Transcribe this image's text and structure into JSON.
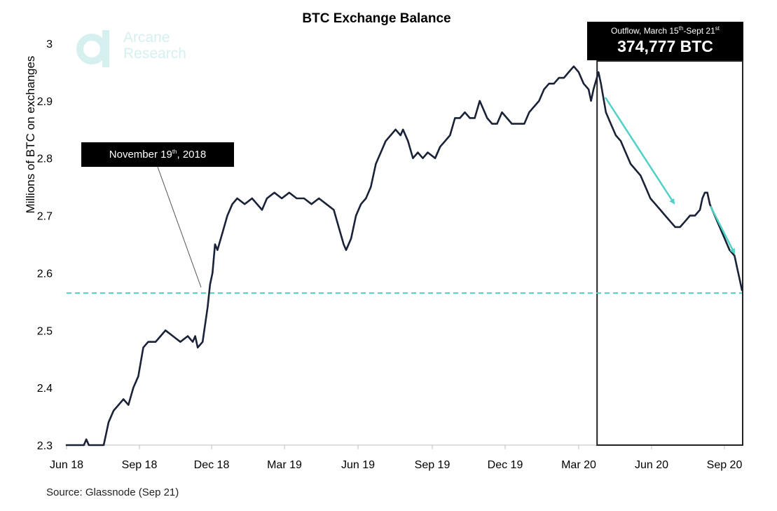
{
  "logo": {
    "line1": "Arcane",
    "line2": "Research"
  },
  "annotations": {
    "november": {
      "prefix": "November 19",
      "sup": "th",
      "suffix": ", 2018"
    },
    "outflow": {
      "caption_prefix": "Outflow, March 15",
      "caption_sup1": "th",
      "caption_mid": "-Sept 21",
      "caption_sup2": "st",
      "value": "374,777 BTC"
    }
  },
  "source": "Source: Glassnode (Sep 21)",
  "colors": {
    "line": "#1a2238",
    "accent": "#4fd1c5",
    "box": "#000000",
    "logo": "#d6efef"
  },
  "chart_data": {
    "type": "line",
    "title": "BTC Exchange Balance",
    "xlabel": "",
    "ylabel": "Millions of BTC on exchanges",
    "x_ticks": [
      "Jun 18",
      "Sep 18",
      "Dec 18",
      "Mar 19",
      "Jun 19",
      "Sep 19",
      "Dec 19",
      "Mar 20",
      "Jun 20",
      "Sep 20"
    ],
    "y_ticks": [
      2.3,
      2.4,
      2.5,
      2.6,
      2.7,
      2.8,
      2.9,
      3
    ],
    "ylim": [
      2.3,
      3.0
    ],
    "x_unit": "months since Jun 2018",
    "xlim": [
      0,
      27.3
    ],
    "grid": false,
    "reference_line": {
      "y": 2.565,
      "style": "dashed"
    },
    "highlight_region": {
      "x_start": 21.5,
      "x_end": 27.3
    },
    "series": [
      {
        "values": [
          [
            0.0,
            2.3
          ],
          [
            0.7,
            2.3
          ],
          [
            0.8,
            2.31
          ],
          [
            0.9,
            2.3
          ],
          [
            1.0,
            2.3
          ],
          [
            1.2,
            2.3
          ],
          [
            1.5,
            2.3
          ],
          [
            1.7,
            2.34
          ],
          [
            1.9,
            2.36
          ],
          [
            2.1,
            2.37
          ],
          [
            2.3,
            2.38
          ],
          [
            2.5,
            2.37
          ],
          [
            2.7,
            2.4
          ],
          [
            2.9,
            2.42
          ],
          [
            3.1,
            2.47
          ],
          [
            3.3,
            2.48
          ],
          [
            3.6,
            2.48
          ],
          [
            3.8,
            2.49
          ],
          [
            4.0,
            2.5
          ],
          [
            4.3,
            2.49
          ],
          [
            4.6,
            2.48
          ],
          [
            4.9,
            2.49
          ],
          [
            5.1,
            2.48
          ],
          [
            5.2,
            2.49
          ],
          [
            5.3,
            2.47
          ],
          [
            5.5,
            2.48
          ],
          [
            5.7,
            2.54
          ],
          [
            5.8,
            2.58
          ],
          [
            5.9,
            2.6
          ],
          [
            6.0,
            2.65
          ],
          [
            6.1,
            2.64
          ],
          [
            6.3,
            2.67
          ],
          [
            6.5,
            2.7
          ],
          [
            6.7,
            2.72
          ],
          [
            6.9,
            2.73
          ],
          [
            7.2,
            2.72
          ],
          [
            7.5,
            2.73
          ],
          [
            7.7,
            2.72
          ],
          [
            7.9,
            2.71
          ],
          [
            8.1,
            2.73
          ],
          [
            8.4,
            2.74
          ],
          [
            8.7,
            2.73
          ],
          [
            9.0,
            2.74
          ],
          [
            9.3,
            2.73
          ],
          [
            9.6,
            2.73
          ],
          [
            9.9,
            2.72
          ],
          [
            10.2,
            2.73
          ],
          [
            10.5,
            2.72
          ],
          [
            10.8,
            2.71
          ],
          [
            11.0,
            2.68
          ],
          [
            11.2,
            2.65
          ],
          [
            11.3,
            2.64
          ],
          [
            11.5,
            2.66
          ],
          [
            11.7,
            2.7
          ],
          [
            11.9,
            2.72
          ],
          [
            12.1,
            2.73
          ],
          [
            12.3,
            2.75
          ],
          [
            12.5,
            2.79
          ],
          [
            12.7,
            2.81
          ],
          [
            12.9,
            2.83
          ],
          [
            13.1,
            2.84
          ],
          [
            13.3,
            2.85
          ],
          [
            13.5,
            2.84
          ],
          [
            13.6,
            2.85
          ],
          [
            13.8,
            2.83
          ],
          [
            14.0,
            2.8
          ],
          [
            14.2,
            2.81
          ],
          [
            14.4,
            2.8
          ],
          [
            14.6,
            2.81
          ],
          [
            14.9,
            2.8
          ],
          [
            15.1,
            2.82
          ],
          [
            15.3,
            2.83
          ],
          [
            15.5,
            2.84
          ],
          [
            15.7,
            2.87
          ],
          [
            15.9,
            2.87
          ],
          [
            16.1,
            2.88
          ],
          [
            16.3,
            2.87
          ],
          [
            16.5,
            2.87
          ],
          [
            16.7,
            2.9
          ],
          [
            16.9,
            2.88
          ],
          [
            17.0,
            2.87
          ],
          [
            17.2,
            2.86
          ],
          [
            17.4,
            2.86
          ],
          [
            17.6,
            2.88
          ],
          [
            17.8,
            2.87
          ],
          [
            18.0,
            2.86
          ],
          [
            18.3,
            2.86
          ],
          [
            18.5,
            2.86
          ],
          [
            18.7,
            2.88
          ],
          [
            18.9,
            2.89
          ],
          [
            19.1,
            2.9
          ],
          [
            19.3,
            2.92
          ],
          [
            19.5,
            2.93
          ],
          [
            19.7,
            2.93
          ],
          [
            19.9,
            2.94
          ],
          [
            20.1,
            2.94
          ],
          [
            20.3,
            2.95
          ],
          [
            20.5,
            2.96
          ],
          [
            20.7,
            2.95
          ],
          [
            20.9,
            2.93
          ],
          [
            21.1,
            2.92
          ],
          [
            21.2,
            2.9
          ],
          [
            21.3,
            2.92
          ],
          [
            21.5,
            2.95
          ],
          [
            21.6,
            2.93
          ],
          [
            21.8,
            2.88
          ],
          [
            22.0,
            2.86
          ],
          [
            22.2,
            2.84
          ],
          [
            22.4,
            2.83
          ],
          [
            22.6,
            2.81
          ],
          [
            22.8,
            2.79
          ],
          [
            23.0,
            2.78
          ],
          [
            23.2,
            2.77
          ],
          [
            23.4,
            2.75
          ],
          [
            23.6,
            2.73
          ],
          [
            23.8,
            2.72
          ],
          [
            24.0,
            2.71
          ],
          [
            24.2,
            2.7
          ],
          [
            24.4,
            2.69
          ],
          [
            24.6,
            2.68
          ],
          [
            24.8,
            2.68
          ],
          [
            25.0,
            2.69
          ],
          [
            25.2,
            2.7
          ],
          [
            25.4,
            2.7
          ],
          [
            25.6,
            2.71
          ],
          [
            25.7,
            2.73
          ],
          [
            25.8,
            2.74
          ],
          [
            25.9,
            2.74
          ],
          [
            26.0,
            2.72
          ],
          [
            26.2,
            2.7
          ],
          [
            26.4,
            2.68
          ],
          [
            26.6,
            2.66
          ],
          [
            26.8,
            2.64
          ],
          [
            27.0,
            2.63
          ],
          [
            27.1,
            2.61
          ],
          [
            27.2,
            2.59
          ],
          [
            27.3,
            2.57
          ]
        ]
      }
    ]
  }
}
